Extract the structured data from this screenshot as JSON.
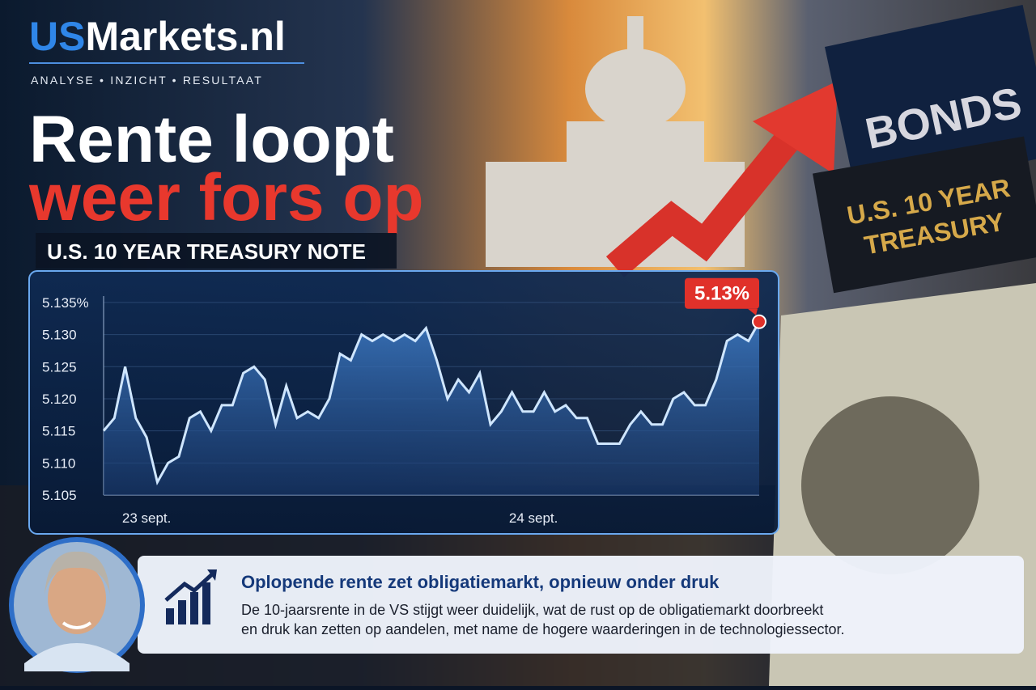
{
  "brand": {
    "us": "US",
    "rest": "Markets.nl",
    "tagline": "ANALYSE • INZICHT • RESULTAAT"
  },
  "headline": {
    "line1": "Rente loopt",
    "line2": "weer fors op"
  },
  "signs": {
    "bonds": "BONDS",
    "treasury_line1": "U.S. 10 YEAR",
    "treasury_line2": "TREASURY"
  },
  "chart_data": {
    "type": "line",
    "title": "U.S. 10 YEAR TREASURY NOTE",
    "color": "#cfe6ff",
    "categories": [
      null,
      null,
      null,
      null,
      "23 sept.",
      null,
      null,
      null,
      null,
      null,
      null,
      null,
      null,
      null,
      null,
      null,
      null,
      null,
      null,
      null,
      null,
      null,
      null,
      null,
      null,
      null,
      null,
      null,
      null,
      null,
      null,
      null,
      null,
      null,
      null,
      null,
      null,
      null,
      null,
      null,
      "24 sept.",
      null,
      null,
      null,
      null,
      null,
      null,
      null,
      null,
      null,
      null,
      null,
      null,
      null,
      null,
      null,
      null,
      null,
      null,
      null,
      null,
      null
    ],
    "values": [
      5.115,
      5.117,
      5.125,
      5.117,
      5.114,
      5.107,
      5.11,
      5.111,
      5.117,
      5.118,
      5.115,
      5.119,
      5.119,
      5.124,
      5.125,
      5.123,
      5.116,
      5.122,
      5.117,
      5.118,
      5.117,
      5.12,
      5.127,
      5.126,
      5.13,
      5.129,
      5.13,
      5.129,
      5.13,
      5.129,
      5.131,
      5.126,
      5.12,
      5.123,
      5.121,
      5.124,
      5.116,
      5.118,
      5.121,
      5.118,
      5.118,
      5.121,
      5.118,
      5.119,
      5.117,
      5.117,
      5.113,
      5.113,
      5.113,
      5.116,
      5.118,
      5.116,
      5.116,
      5.12,
      5.121,
      5.119,
      5.119,
      5.123,
      5.129,
      5.13,
      5.129,
      5.132
    ],
    "value_labels": [
      null,
      null,
      null,
      null,
      null,
      null,
      null,
      null,
      null,
      null,
      null,
      null,
      null,
      null,
      null,
      null,
      null,
      null,
      null,
      null,
      null,
      null,
      null,
      null,
      null,
      null,
      null,
      null,
      null,
      null,
      null,
      null,
      null,
      null,
      null,
      null,
      null,
      null,
      null,
      null,
      null,
      null,
      null,
      null,
      null,
      null,
      null,
      null,
      null,
      null,
      null,
      null,
      null,
      null,
      null,
      null,
      null,
      null,
      null,
      null,
      null,
      "5.13%"
    ],
    "ylim": [
      5.105,
      5.136
    ],
    "yticks": [
      5.105,
      {
        "value": 5.11,
        "label": "5.110"
      },
      5.115,
      {
        "value": 5.12,
        "label": "5.120"
      },
      5.125,
      {
        "value": 5.13,
        "label": "5.130"
      },
      {
        "value": 5.135,
        "label": "5.135%"
      }
    ],
    "grid": true
  },
  "caption": {
    "title": "Oplopende rente zet obligatiemarkt, opnieuw onder druk",
    "line1": "De 10-jaarsrente in de VS stijgt weer duidelijk, wat de rust op de obligatiemarkt doorbreekt",
    "line2": "en druk kan zetten op aandelen, met name de hogere waarderingen in de technologiessector."
  }
}
